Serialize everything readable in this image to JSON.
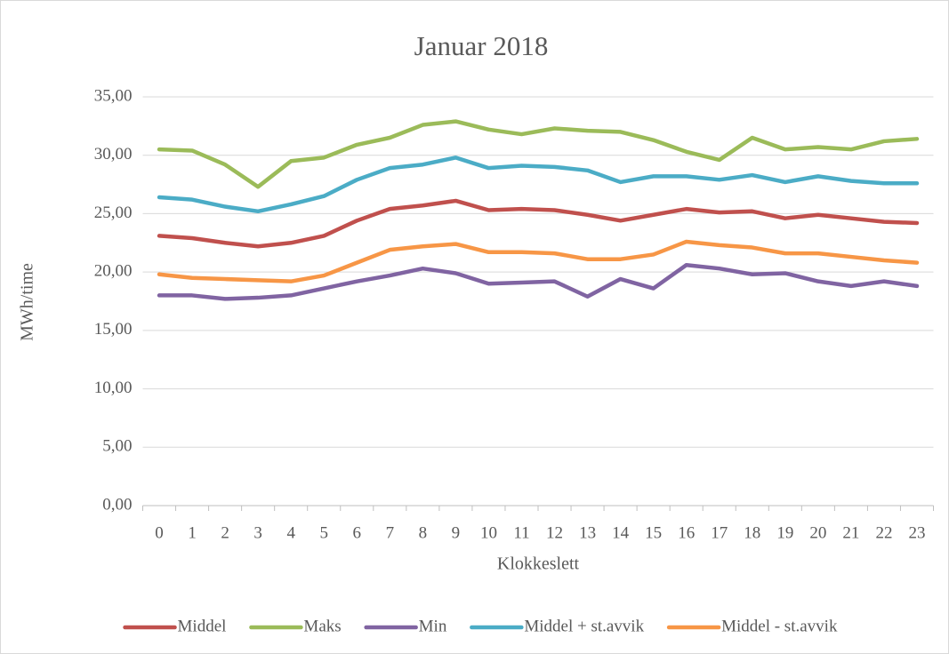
{
  "chart_data": {
    "type": "line",
    "title": "Januar 2018",
    "x_label": "Klokkeslett",
    "y_label": "MWh/time",
    "categories": [
      "0",
      "1",
      "2",
      "3",
      "4",
      "5",
      "6",
      "7",
      "8",
      "9",
      "10",
      "11",
      "12",
      "13",
      "14",
      "15",
      "16",
      "17",
      "18",
      "19",
      "20",
      "21",
      "22",
      "23"
    ],
    "series": [
      {
        "name": "Middel",
        "color": "#c0504d",
        "values": [
          23.1,
          22.9,
          22.5,
          22.2,
          22.5,
          23.1,
          24.4,
          25.4,
          25.7,
          26.1,
          25.3,
          25.4,
          25.3,
          24.9,
          24.4,
          24.9,
          25.4,
          25.1,
          25.2,
          24.6,
          24.9,
          24.6,
          24.3,
          24.2
        ]
      },
      {
        "name": "Maks",
        "color": "#9bbb59",
        "values": [
          30.5,
          30.4,
          29.2,
          27.3,
          29.5,
          29.8,
          30.9,
          31.5,
          32.6,
          32.9,
          32.2,
          31.8,
          32.3,
          32.1,
          32.0,
          31.3,
          30.3,
          29.6,
          31.5,
          30.5,
          30.7,
          30.5,
          31.2,
          31.4
        ]
      },
      {
        "name": "Min",
        "color": "#8064a2",
        "values": [
          18.0,
          18.0,
          17.7,
          17.8,
          18.0,
          18.6,
          19.2,
          19.7,
          20.3,
          19.9,
          19.0,
          19.1,
          19.2,
          17.9,
          19.4,
          18.6,
          20.6,
          20.3,
          19.8,
          19.9,
          19.2,
          18.8,
          19.2,
          18.8
        ]
      },
      {
        "name": "Middel + st.avvik",
        "color": "#4bacc6",
        "values": [
          26.4,
          26.2,
          25.6,
          25.2,
          25.8,
          26.5,
          27.9,
          28.9,
          29.2,
          29.8,
          28.9,
          29.1,
          29.0,
          28.7,
          27.7,
          28.2,
          28.2,
          27.9,
          28.3,
          27.7,
          28.2,
          27.8,
          27.6,
          27.6
        ]
      },
      {
        "name": "Middel - st.avvik",
        "color": "#f79646",
        "values": [
          19.8,
          19.5,
          19.4,
          19.3,
          19.2,
          19.7,
          20.8,
          21.9,
          22.2,
          22.4,
          21.7,
          21.7,
          21.6,
          21.1,
          21.1,
          21.5,
          22.6,
          22.3,
          22.1,
          21.6,
          21.6,
          21.3,
          21.0,
          20.8
        ]
      }
    ],
    "ylim": [
      0,
      35
    ],
    "yticks": [
      {
        "value": 0,
        "label": "0,00"
      },
      {
        "value": 5,
        "label": "5,00"
      },
      {
        "value": 10,
        "label": "10,00"
      },
      {
        "value": 15,
        "label": "15,00"
      },
      {
        "value": 20,
        "label": "20,00"
      },
      {
        "value": 25,
        "label": "25,00"
      },
      {
        "value": 30,
        "label": "30,00"
      },
      {
        "value": 35,
        "label": "35,00"
      }
    ],
    "grid": true,
    "legend": "bottom"
  }
}
